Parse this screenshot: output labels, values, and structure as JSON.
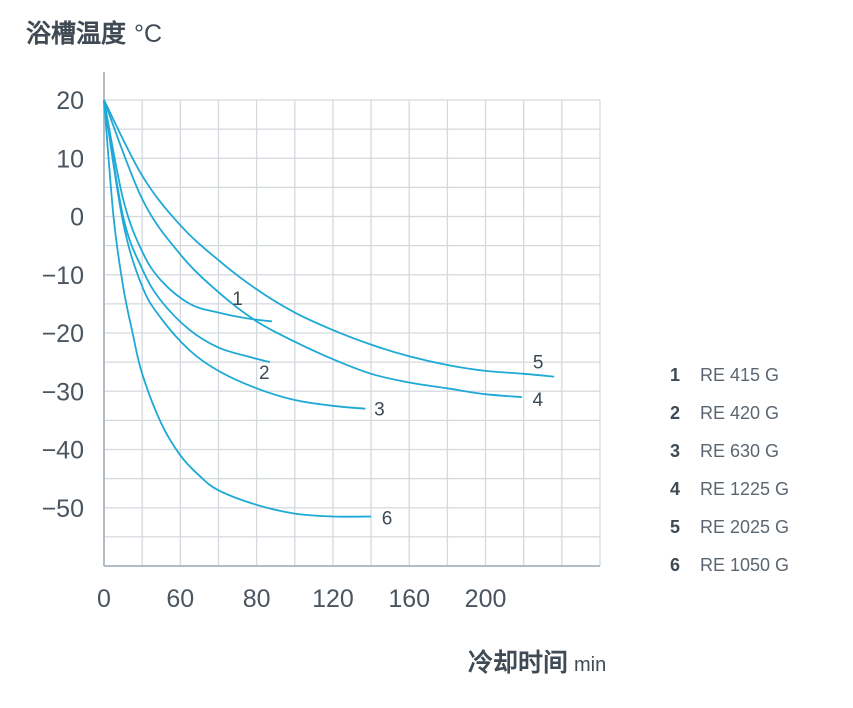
{
  "chart_data": {
    "type": "line",
    "ylabel": "浴槽温度",
    "yunit": "°C",
    "xlabel": "冷却时间",
    "xunit": "min",
    "xlim": [
      0,
      260
    ],
    "ylim": [
      -60,
      20
    ],
    "x_ticks": [
      0,
      60,
      80,
      120,
      160,
      200
    ],
    "y_ticks": [
      20,
      10,
      0,
      -10,
      -20,
      -30,
      -40,
      -50
    ],
    "grid": true,
    "legend_position": "right",
    "series": [
      {
        "label": "1",
        "name": "RE 415 G",
        "x": [
          0,
          10,
          20,
          30,
          45,
          60,
          75,
          88
        ],
        "y": [
          20,
          3,
          -6,
          -11,
          -15,
          -16.5,
          -17.5,
          -18
        ]
      },
      {
        "label": "2",
        "name": "RE 420 G",
        "x": [
          0,
          10,
          20,
          30,
          45,
          60,
          75,
          87
        ],
        "y": [
          20,
          0,
          -9,
          -14.5,
          -19.5,
          -22.5,
          -24,
          -25
        ]
      },
      {
        "label": "3",
        "name": "RE 630 G",
        "x": [
          0,
          10,
          20,
          30,
          45,
          60,
          80,
          100,
          120,
          137
        ],
        "y": [
          20,
          -1,
          -12,
          -17.5,
          -23,
          -26.5,
          -29.5,
          -31.5,
          -32.5,
          -33
        ]
      },
      {
        "label": "4",
        "name": "RE 1225 G",
        "x": [
          0,
          20,
          40,
          60,
          80,
          100,
          120,
          140,
          160,
          180,
          200,
          219
        ],
        "y": [
          20,
          3,
          -6.5,
          -13,
          -18,
          -21.5,
          -24.5,
          -27,
          -28.5,
          -29.5,
          -30.5,
          -31
        ]
      },
      {
        "label": "5",
        "name": "RE 2025 G",
        "x": [
          0,
          20,
          40,
          60,
          80,
          100,
          120,
          140,
          160,
          180,
          200,
          220,
          236
        ],
        "y": [
          20,
          7,
          -1.5,
          -7.5,
          -12.5,
          -16.5,
          -19.5,
          -22,
          -24,
          -25.5,
          -26.5,
          -27,
          -27.5
        ]
      },
      {
        "label": "6",
        "name": "RE 1050 G",
        "x": [
          0,
          5,
          10,
          15,
          20,
          30,
          40,
          50,
          60,
          80,
          100,
          120,
          140
        ],
        "y": [
          20,
          0,
          -12,
          -20,
          -27,
          -35.5,
          -41,
          -44.5,
          -47,
          -49.5,
          -51,
          -51.5,
          -51.5
        ]
      }
    ]
  },
  "colors": {
    "line": "#1ea9d6",
    "grid": "#d4d9de",
    "axis": "#b3bcc4",
    "tick_text": "#4a5560"
  }
}
